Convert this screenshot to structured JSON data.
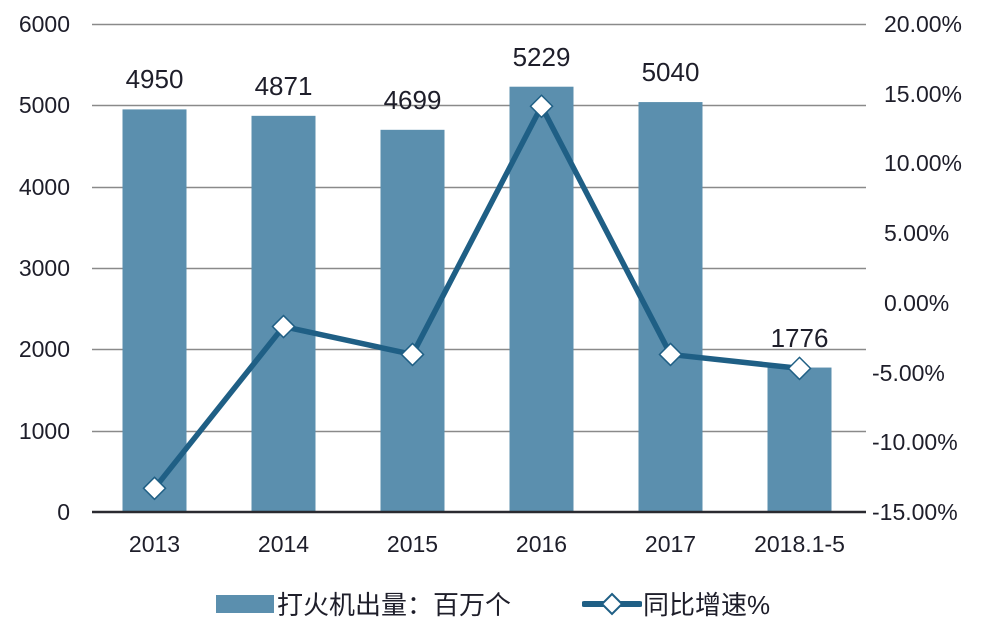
{
  "chart_data": {
    "type": "bar+line",
    "title": "",
    "categories": [
      "2013",
      "2014",
      "2015",
      "2016",
      "2017",
      "2018.1-5"
    ],
    "series": [
      {
        "name": "打火机出量：百万个",
        "type": "bar",
        "axis": "left",
        "color": "#5b8fae",
        "values": [
          4950,
          4871,
          4699,
          5229,
          5040,
          1776
        ],
        "data_labels": [
          "4950",
          "4871",
          "4699",
          "5229",
          "5040",
          "1776"
        ]
      },
      {
        "name": "同比增速%",
        "type": "line",
        "axis": "right",
        "color": "#1f5f85",
        "marker": "diamond",
        "values": [
          -13.3,
          -1.7,
          -3.7,
          14.1,
          -3.7,
          -4.7
        ]
      }
    ],
    "left_axis": {
      "label": "",
      "ylim": [
        0,
        6000
      ],
      "ticks": [
        0,
        1000,
        2000,
        3000,
        4000,
        5000,
        6000
      ],
      "tick_labels": [
        "0",
        "1000",
        "2000",
        "3000",
        "4000",
        "5000",
        "6000"
      ]
    },
    "right_axis": {
      "label": "",
      "ylim": [
        -15,
        20
      ],
      "ticks": [
        -15,
        -10,
        -5,
        0,
        5,
        10,
        15,
        20
      ],
      "tick_labels": [
        "-15.00%",
        "-10.00%",
        "-5.00%",
        "0.00%",
        "5.00%",
        "10.00%",
        "15.00%",
        "20.00%"
      ]
    },
    "grid": true,
    "legend_position": "bottom"
  },
  "legend": {
    "bar_label": "打火机出量：百万个",
    "line_label": "同比增速%"
  }
}
